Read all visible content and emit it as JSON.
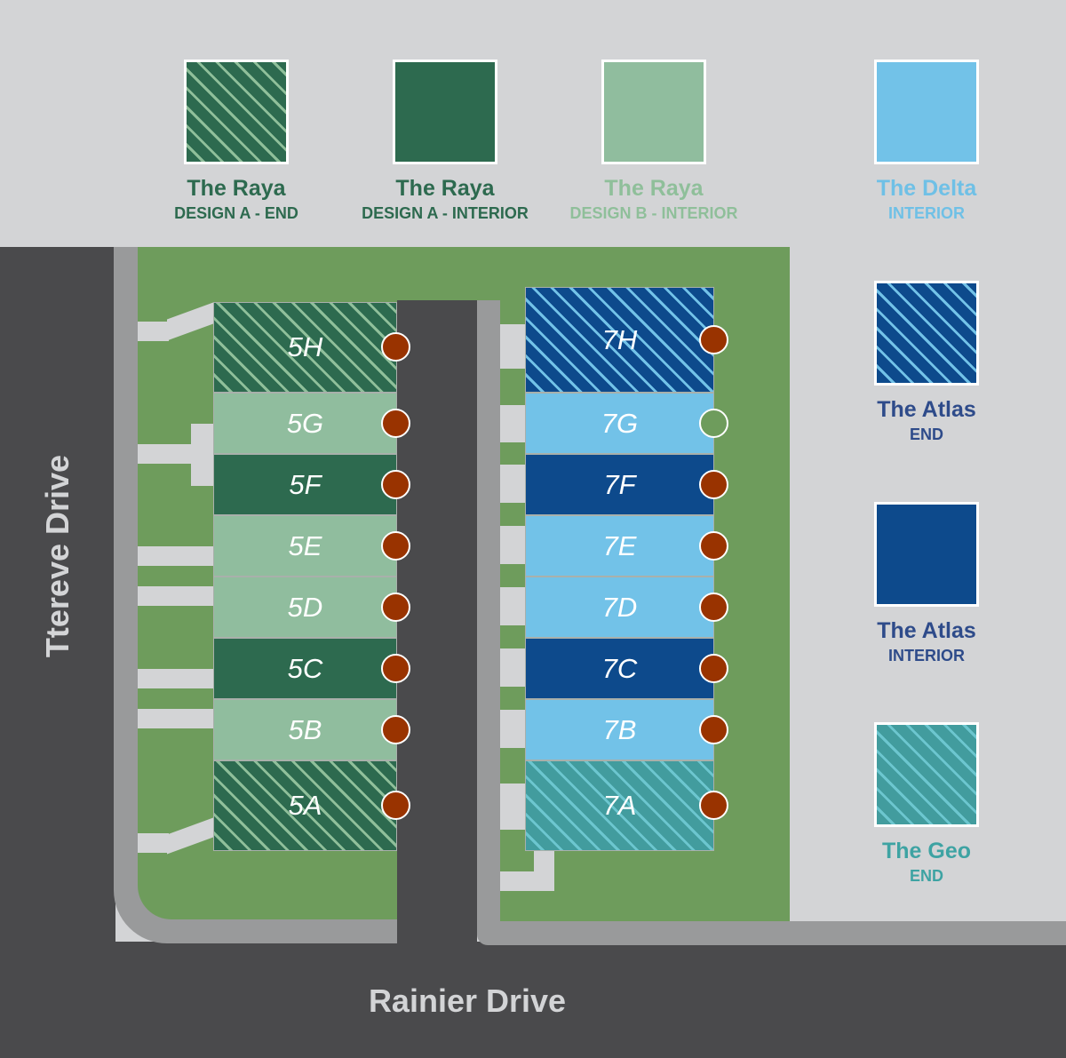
{
  "legend": [
    {
      "title": "The Raya",
      "subtitle": "DESIGN A - END",
      "pattern": "hatched",
      "color": "#2d6a4f",
      "text_color": "#2d6a4f"
    },
    {
      "title": "The Raya",
      "subtitle": "DESIGN A - INTERIOR",
      "pattern": "solid",
      "color": "#2d6a4f",
      "text_color": "#2d6a4f"
    },
    {
      "title": "The Raya",
      "subtitle": "DESIGN B - INTERIOR",
      "pattern": "solid",
      "color": "#90bd9e",
      "text_color": "#8fbf9a"
    },
    {
      "title": "The Delta",
      "subtitle": "INTERIOR",
      "pattern": "solid",
      "color": "#72c2e8",
      "text_color": "#6fc0e6"
    },
    {
      "title": "The Atlas",
      "subtitle": "END",
      "pattern": "hatched",
      "color": "#0d4a8c",
      "text_color": "#2e4b8a"
    },
    {
      "title": "The Atlas",
      "subtitle": "INTERIOR",
      "pattern": "solid",
      "color": "#0d4a8c",
      "text_color": "#2e4b8a"
    },
    {
      "title": "The Geo",
      "subtitle": "END",
      "pattern": "hatched",
      "color": "#429c9e",
      "text_color": "#3ea3a3"
    }
  ],
  "streets": {
    "left": "Ttereve Drive",
    "bottom": "Rainier Drive"
  },
  "building5": [
    {
      "label": "5H",
      "type": "Raya A End",
      "status": "sold"
    },
    {
      "label": "5G",
      "type": "Raya B Interior",
      "status": "sold"
    },
    {
      "label": "5F",
      "type": "Raya A Interior",
      "status": "sold"
    },
    {
      "label": "5E",
      "type": "Raya B Interior",
      "status": "sold"
    },
    {
      "label": "5D",
      "type": "Raya B Interior",
      "status": "sold"
    },
    {
      "label": "5C",
      "type": "Raya A Interior",
      "status": "sold"
    },
    {
      "label": "5B",
      "type": "Raya B Interior",
      "status": "sold"
    },
    {
      "label": "5A",
      "type": "Raya A End",
      "status": "sold"
    }
  ],
  "building7": [
    {
      "label": "7H",
      "type": "Atlas End",
      "status": "sold"
    },
    {
      "label": "7G",
      "type": "Delta Interior",
      "status": "available"
    },
    {
      "label": "7F",
      "type": "Atlas Interior",
      "status": "sold"
    },
    {
      "label": "7E",
      "type": "Delta Interior",
      "status": "sold"
    },
    {
      "label": "7D",
      "type": "Delta Interior",
      "status": "sold"
    },
    {
      "label": "7C",
      "type": "Atlas Interior",
      "status": "sold"
    },
    {
      "label": "7B",
      "type": "Delta Interior",
      "status": "sold"
    },
    {
      "label": "7A",
      "type": "Geo End",
      "status": "sold"
    }
  ],
  "colors": {
    "sold": "#993300",
    "available": "#6e9c5c",
    "grass": "#6e9c5c",
    "road": "#4a4a4c"
  }
}
